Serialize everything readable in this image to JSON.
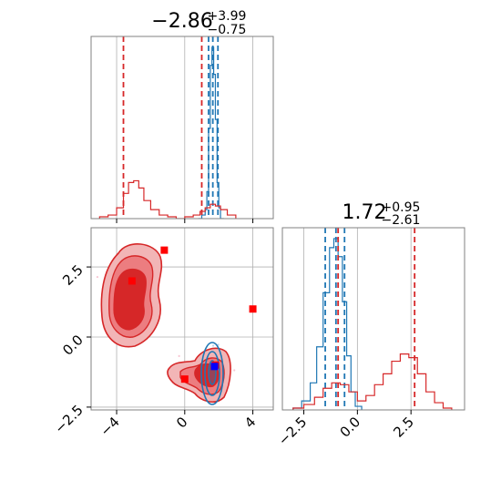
{
  "chart_data": [
    {
      "type": "histogram",
      "panel": "top-left",
      "title": {
        "value": "−2.86",
        "upper": "+3.99",
        "lower": "−0.75"
      },
      "xlim": [
        -5.5,
        5.2
      ],
      "grid": true,
      "series": [
        {
          "name": "",
          "color": "#1f77b4",
          "bins": [
            0.8,
            1.0,
            1.2,
            1.3,
            1.4,
            1.5,
            1.6,
            1.7,
            1.8,
            1.9,
            2.0,
            2.1,
            2.3
          ],
          "counts": [
            0.0,
            0.02,
            0.05,
            0.15,
            0.5,
            0.85,
            0.95,
            0.8,
            0.55,
            0.2,
            0.06,
            0.0
          ],
          "quantiles": [
            1.4,
            1.65,
            1.95
          ]
        },
        {
          "name": "",
          "color": "#d62728",
          "bins": [
            -5.0,
            -4.5,
            -4.0,
            -3.6,
            -3.3,
            -3.0,
            -2.7,
            -2.4,
            -2.0,
            -1.5,
            -1.0,
            -0.5,
            0.0,
            0.5,
            0.9,
            1.2,
            1.5,
            1.8,
            2.1,
            2.5,
            3.0
          ],
          "counts": [
            0.01,
            0.02,
            0.06,
            0.14,
            0.2,
            0.21,
            0.17,
            0.1,
            0.05,
            0.02,
            0.01,
            0.0,
            0.01,
            0.02,
            0.04,
            0.06,
            0.08,
            0.07,
            0.05,
            0.02
          ],
          "quantiles": [
            -3.6,
            1.0
          ]
        }
      ]
    },
    {
      "type": "scatter-contour",
      "panel": "bottom-left",
      "xlim": [
        -5.5,
        5.2
      ],
      "ylim": [
        -2.6,
        3.9
      ],
      "xticks": [
        "−4",
        "0",
        "4"
      ],
      "xtick_values": [
        -4,
        0,
        4
      ],
      "yticks": [
        "−2.5",
        "0.0",
        "2.5"
      ],
      "ytick_values": [
        -2.5,
        0,
        2.5
      ],
      "grid": true,
      "red_markers": [
        [
          -1.2,
          3.1
        ],
        [
          -3.1,
          2.0
        ],
        [
          4.0,
          1.0
        ],
        [
          0.0,
          -1.5
        ],
        [
          1.8,
          -1.0
        ]
      ],
      "blue_markers": [
        [
          1.75,
          -1.05
        ]
      ]
    },
    {
      "type": "histogram",
      "panel": "bottom-right",
      "title": {
        "value": "1.72",
        "upper": "+0.95",
        "lower": "−2.61"
      },
      "xlim": [
        -3.5,
        5.0
      ],
      "xticks": [
        "−2.5",
        "0.0",
        "2.5"
      ],
      "xtick_values": [
        -2.5,
        0,
        2.5
      ],
      "grid": true,
      "series": [
        {
          "name": "",
          "color": "#1f77b4",
          "bins": [
            -3.0,
            -2.6,
            -2.2,
            -1.9,
            -1.6,
            -1.3,
            -1.1,
            -0.9,
            -0.7,
            -0.5,
            -0.3,
            -0.1,
            0.2
          ],
          "counts": [
            0.01,
            0.05,
            0.15,
            0.35,
            0.65,
            0.9,
            0.95,
            0.85,
            0.6,
            0.3,
            0.1,
            0.02
          ],
          "quantiles": [
            -1.5,
            -1.0,
            -0.6
          ]
        },
        {
          "name": "",
          "color": "#d62728",
          "bins": [
            -3.0,
            -2.5,
            -2.0,
            -1.6,
            -1.2,
            -0.8,
            -0.4,
            0.0,
            0.4,
            0.8,
            1.2,
            1.6,
            2.0,
            2.4,
            2.8,
            3.2,
            3.6,
            4.0,
            4.4
          ],
          "counts": [
            0.01,
            0.03,
            0.07,
            0.12,
            0.15,
            0.14,
            0.1,
            0.05,
            0.08,
            0.14,
            0.2,
            0.27,
            0.31,
            0.29,
            0.2,
            0.1,
            0.04,
            0.01
          ],
          "quantiles": [
            -0.9,
            2.67
          ]
        }
      ]
    }
  ]
}
